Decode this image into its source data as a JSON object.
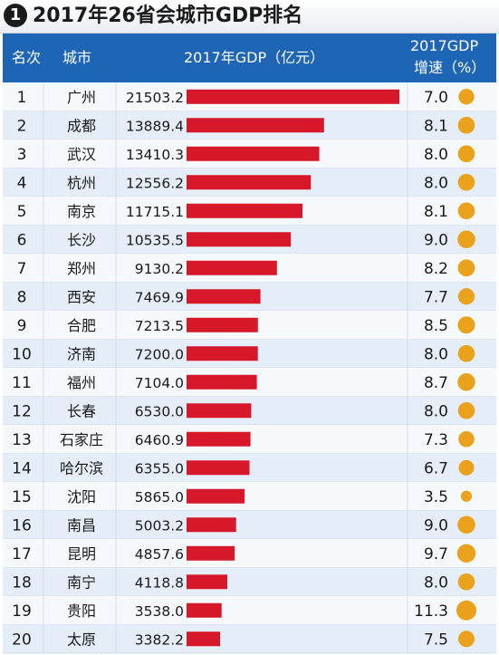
{
  "title": {
    "number": "1",
    "text": "2017年26省会城市GDP排名"
  },
  "header": {
    "rank_label": "名次",
    "city_label": "城市",
    "gdp_label": "2017年GDP（亿元）",
    "growth_label_line1": "2017GDP",
    "growth_label_line2": "增速（%）"
  },
  "colors": {
    "header_bg": "#1e66b5",
    "bar": "#d7182a",
    "dot": "#eaa21c",
    "row_alt": "#e5eef8",
    "row": "#f6f9fc"
  },
  "chart_data": {
    "type": "table",
    "columns": [
      "名次",
      "城市",
      "2017年GDP（亿元）",
      "2017GDP增速（%）"
    ],
    "rows": [
      {
        "rank": "1",
        "city": "广州",
        "gdp": "21503.2",
        "growth": "7.0"
      },
      {
        "rank": "2",
        "city": "成都",
        "gdp": "13889.4",
        "growth": "8.1"
      },
      {
        "rank": "3",
        "city": "武汉",
        "gdp": "13410.3",
        "growth": "8.0"
      },
      {
        "rank": "4",
        "city": "杭州",
        "gdp": "12556.2",
        "growth": "8.0"
      },
      {
        "rank": "5",
        "city": "南京",
        "gdp": "11715.1",
        "growth": "8.1"
      },
      {
        "rank": "6",
        "city": "长沙",
        "gdp": "10535.5",
        "growth": "9.0"
      },
      {
        "rank": "7",
        "city": "郑州",
        "gdp": "9130.2",
        "growth": "8.2"
      },
      {
        "rank": "8",
        "city": "西安",
        "gdp": "7469.9",
        "growth": "7.7"
      },
      {
        "rank": "9",
        "city": "合肥",
        "gdp": "7213.5",
        "growth": "8.5"
      },
      {
        "rank": "10",
        "city": "济南",
        "gdp": "7200.0",
        "growth": "8.0"
      },
      {
        "rank": "11",
        "city": "福州",
        "gdp": "7104.0",
        "growth": "8.7"
      },
      {
        "rank": "12",
        "city": "长春",
        "gdp": "6530.0",
        "growth": "8.0"
      },
      {
        "rank": "13",
        "city": "石家庄",
        "gdp": "6460.9",
        "growth": "7.3"
      },
      {
        "rank": "14",
        "city": "哈尔滨",
        "gdp": "6355.0",
        "growth": "6.7"
      },
      {
        "rank": "15",
        "city": "沈阳",
        "gdp": "5865.0",
        "growth": "3.5"
      },
      {
        "rank": "16",
        "city": "南昌",
        "gdp": "5003.2",
        "growth": "9.0"
      },
      {
        "rank": "17",
        "city": "昆明",
        "gdp": "4857.6",
        "growth": "9.7"
      },
      {
        "rank": "18",
        "city": "南宁",
        "gdp": "4118.8",
        "growth": "8.0"
      },
      {
        "rank": "19",
        "city": "贵阳",
        "gdp": "3538.0",
        "growth": "11.3"
      },
      {
        "rank": "20",
        "city": "太原",
        "gdp": "3382.2",
        "growth": "7.5"
      }
    ]
  }
}
